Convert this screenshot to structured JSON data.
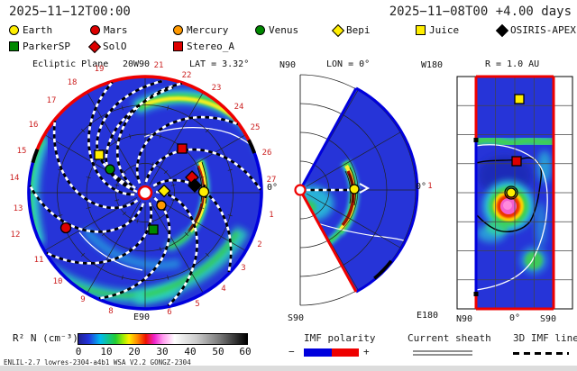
{
  "header": {
    "left_datetime": "2025−11−12T00:00",
    "right_datetime": "2025−11−08T00 +4.00 days"
  },
  "legend": {
    "row1": [
      {
        "label": "Earth",
        "shape": "circle",
        "color": "#ffee00"
      },
      {
        "label": "Mars",
        "shape": "circle",
        "color": "#dd0000"
      },
      {
        "label": "Mercury",
        "shape": "circle",
        "color": "#ff9900"
      },
      {
        "label": "Venus",
        "shape": "circle",
        "color": "#008800"
      },
      {
        "label": "Bepi",
        "shape": "diamond",
        "color": "#ffee00"
      },
      {
        "label": "Juice",
        "shape": "square",
        "color": "#ffee00"
      },
      {
        "label": "OSIRIS-APEX",
        "shape": "diamond",
        "color": "#000000"
      }
    ],
    "row2": [
      {
        "label": "ParkerSP",
        "shape": "square",
        "color": "#008800"
      },
      {
        "label": "SolO",
        "shape": "diamond",
        "color": "#dd0000"
      },
      {
        "label": "Stereo_A",
        "shape": "square",
        "color": "#dd0000"
      }
    ]
  },
  "panels": {
    "ecliptic": {
      "title": "Ecliptic Plane",
      "lat_label": "LAT = 3.32°",
      "top_axis": "W90",
      "bottom_axis": "E90",
      "right_axis": "0°",
      "rim_dates": [
        "21",
        "22",
        "23",
        "24",
        "25",
        "26",
        "27",
        "1",
        "2",
        "3",
        "4",
        "5",
        "6",
        "8",
        "9",
        "10",
        "11",
        "12",
        "13",
        "14",
        "15",
        "16",
        "17",
        "18",
        "19",
        "20"
      ]
    },
    "meridional": {
      "top_axis": "N90",
      "title": "LON = 0°",
      "bottom_axis": "S90",
      "right_axis": "0°"
    },
    "radial": {
      "title": "R = 1.0 AU",
      "top_left": "W180",
      "bottom_left": "E180",
      "date_label": "1",
      "x_axis": [
        "N90",
        "0°",
        "S90"
      ]
    }
  },
  "colorbar": {
    "label": "R² N (cm⁻³)",
    "ticks": [
      "0",
      "10",
      "20",
      "30",
      "40",
      "50",
      "60"
    ]
  },
  "bottom_legend": {
    "imf": {
      "title": "IMF polarity",
      "minus": "−",
      "plus": "+",
      "negative_color": "#0000dd",
      "positive_color": "#ee0000"
    },
    "sheath": {
      "title": "Current sheath"
    },
    "imfline": {
      "title": "3D IMF line"
    }
  },
  "footer": {
    "model_info": "ENLIL-2.7 lowres-2304-a4b1 WSA_V2.2 GONGZ-2304"
  },
  "chart_data": {
    "type": "heatmap",
    "model": "ENLIL 2.7 heliospheric MHD, WSA V2.2, GONGZ-2304 magnetogram",
    "quantity": "scaled plasma density R² N (cm⁻³)",
    "color_scale": {
      "range": [
        0,
        60
      ],
      "ticks": [
        0,
        10,
        20,
        30,
        40,
        50,
        60
      ]
    },
    "forecast_time": "2025-11-12T00:00",
    "run_start": "2025-11-08T00",
    "elapsed_days": 4.0,
    "panels": [
      {
        "id": "ecliptic",
        "title": "Ecliptic Plane",
        "lat_deg": 3.32,
        "outer_radius_au": 2.1,
        "rim_day_labels": [
          1,
          2,
          3,
          4,
          5,
          6,
          8,
          9,
          10,
          11,
          12,
          13,
          14,
          15,
          16,
          17,
          18,
          19,
          20,
          21,
          22,
          23,
          24,
          25,
          26,
          27
        ],
        "imf_polarity_rim": {
          "positive_red": "upper rim (~day 15 through W90 to ~day 25)",
          "negative_blue": "lower rim"
        }
      },
      {
        "id": "meridional",
        "title": "LON = 0°",
        "lat_coverage_deg": [
          -60,
          60
        ],
        "pole_labels": [
          "N90",
          "S90"
        ]
      },
      {
        "id": "radius-map",
        "title": "R = 1.0 AU",
        "lat_axis": [
          "N90",
          "0°",
          "S90"
        ],
        "lon_axis": [
          "W180",
          "E180"
        ]
      }
    ],
    "objects": [
      {
        "name": "Earth",
        "marker": "circle",
        "color": "#ffee00"
      },
      {
        "name": "Mars",
        "marker": "circle",
        "color": "#dd0000"
      },
      {
        "name": "Mercury",
        "marker": "circle",
        "color": "#ff9900"
      },
      {
        "name": "Venus",
        "marker": "circle",
        "color": "#008800"
      },
      {
        "name": "Bepi",
        "marker": "diamond",
        "color": "#ffee00"
      },
      {
        "name": "Juice",
        "marker": "square",
        "color": "#ffee00"
      },
      {
        "name": "OSIRIS-APEX",
        "marker": "diamond",
        "color": "#000000"
      },
      {
        "name": "ParkerSP",
        "marker": "square",
        "color": "#008800"
      },
      {
        "name": "SolO",
        "marker": "diamond",
        "color": "#dd0000"
      },
      {
        "name": "Stereo_A",
        "marker": "square",
        "color": "#dd0000"
      }
    ],
    "annotations": [
      "white line = current sheath",
      "black/white dashed curves = 3D IMF lines",
      "high-density CME front just sunward of Earth",
      "corotating interaction region spiral in upper-right of ecliptic panel"
    ]
  }
}
